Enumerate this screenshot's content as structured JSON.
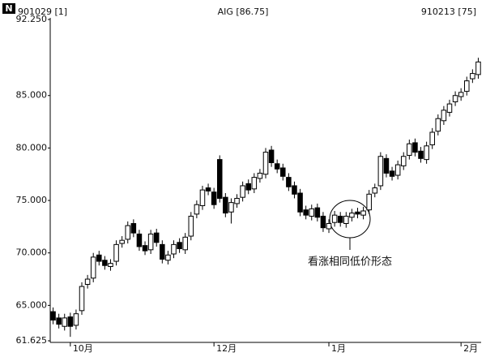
{
  "chart_data": {
    "type": "candlestick",
    "logo": "N",
    "start_label": "901029 [1]",
    "title": "AIG [86.75]",
    "end_label": "910213 [75]",
    "annotation": "看涨相同低价形态",
    "categories": [
      null,
      null,
      null,
      "10月",
      null,
      null,
      null,
      null,
      null,
      null,
      null,
      null,
      null,
      null,
      null,
      null,
      null,
      null,
      null,
      null,
      null,
      null,
      null,
      null,
      null,
      null,
      null,
      null,
      "12月",
      null,
      null,
      null,
      null,
      null,
      null,
      null,
      null,
      null,
      null,
      null,
      null,
      null,
      null,
      null,
      null,
      null,
      null,
      null,
      "1月",
      null,
      null,
      null,
      null,
      null,
      null,
      null,
      null,
      null,
      null,
      null,
      null,
      null,
      null,
      null,
      null,
      null,
      null,
      null,
      null,
      null,
      null,
      "2月",
      null,
      null,
      null
    ],
    "open": [
      64.4,
      63.8,
      63.0,
      63.9,
      63.1,
      64.5,
      67.0,
      67.6,
      69.8,
      69.3,
      68.7,
      69.2,
      70.9,
      71.3,
      72.8,
      71.8,
      70.7,
      70.3,
      71.9,
      70.8,
      69.3,
      69.9,
      71.0,
      70.3,
      71.6,
      73.7,
      74.5,
      76.2,
      75.8,
      78.9,
      75.3,
      73.9,
      74.7,
      75.3,
      76.6,
      76.1,
      77.1,
      77.5,
      79.8,
      78.5,
      78.1,
      77.2,
      76.4,
      75.7,
      74.1,
      73.5,
      74.3,
      73.5,
      72.3,
      72.9,
      73.5,
      72.8,
      73.4,
      73.9,
      73.6,
      74.1,
      75.7,
      76.4,
      79.0,
      77.8,
      77.4,
      78.3,
      79.3,
      80.5,
      79.7,
      78.9,
      80.3,
      81.6,
      82.6,
      83.4,
      84.4,
      84.9,
      85.4,
      86.6,
      87.0
    ],
    "high": [
      64.8,
      64.2,
      64.2,
      64.3,
      64.6,
      67.2,
      67.9,
      70.0,
      70.2,
      69.7,
      69.4,
      71.2,
      71.6,
      73.0,
      73.2,
      72.2,
      71.1,
      72.2,
      72.3,
      71.2,
      70.2,
      71.2,
      71.4,
      71.9,
      73.9,
      75.0,
      76.4,
      76.6,
      76.2,
      79.3,
      75.7,
      75.2,
      75.6,
      76.8,
      77.0,
      77.6,
      78.0,
      80.0,
      80.2,
      78.9,
      78.5,
      77.6,
      76.8,
      76.1,
      74.5,
      74.6,
      74.7,
      73.9,
      73.2,
      74.0,
      73.9,
      73.9,
      74.2,
      74.3,
      74.4,
      76.0,
      76.6,
      79.6,
      79.4,
      78.2,
      78.8,
      79.6,
      80.8,
      80.9,
      80.1,
      80.6,
      81.9,
      83.2,
      84.0,
      84.6,
      85.4,
      85.7,
      86.8,
      87.5,
      88.6
    ],
    "low": [
      63.2,
      62.8,
      62.6,
      62.0,
      62.7,
      64.1,
      66.6,
      67.2,
      68.8,
      68.4,
      68.3,
      68.8,
      70.5,
      70.9,
      71.5,
      70.2,
      69.8,
      69.9,
      70.6,
      69.0,
      68.9,
      69.5,
      70.0,
      69.9,
      71.2,
      73.3,
      74.1,
      75.5,
      74.2,
      74.8,
      73.4,
      72.8,
      74.3,
      74.9,
      75.6,
      75.7,
      76.7,
      77.1,
      78.2,
      77.6,
      76.9,
      75.9,
      75.2,
      73.5,
      73.2,
      73.1,
      73.0,
      72.0,
      71.9,
      72.5,
      72.5,
      72.4,
      73.0,
      73.3,
      73.2,
      73.7,
      75.3,
      76.0,
      77.2,
      76.9,
      77.0,
      77.9,
      78.9,
      79.2,
      78.6,
      78.5,
      79.9,
      81.2,
      82.2,
      83.0,
      84.0,
      84.5,
      85.0,
      86.2,
      86.6
    ],
    "close": [
      63.6,
      63.2,
      63.8,
      63.0,
      64.2,
      66.8,
      67.5,
      69.6,
      69.2,
      68.8,
      69.0,
      70.8,
      71.2,
      72.6,
      71.9,
      70.6,
      70.2,
      71.8,
      71.0,
      69.4,
      69.8,
      70.8,
      70.4,
      71.5,
      73.5,
      74.6,
      76.0,
      75.9,
      74.6,
      75.2,
      73.8,
      74.8,
      75.2,
      76.4,
      76.0,
      77.2,
      77.6,
      79.6,
      78.6,
      78.0,
      77.3,
      76.3,
      75.6,
      73.9,
      73.6,
      74.2,
      73.4,
      72.4,
      72.8,
      73.6,
      72.9,
      73.5,
      73.8,
      73.7,
      74.0,
      75.6,
      76.2,
      79.2,
      77.6,
      77.3,
      78.4,
      79.2,
      80.4,
      79.6,
      79.0,
      80.2,
      81.5,
      82.8,
      83.6,
      84.2,
      85.0,
      85.3,
      86.4,
      87.1,
      88.2
    ],
    "up_color": "#ffffff",
    "down_color": "#000000",
    "ylim": [
      61.625,
      92.25
    ],
    "yticks": [
      {
        "value": 61.625,
        "label": "61.625"
      },
      {
        "value": 65,
        "label": "65.000"
      },
      {
        "value": 70,
        "label": "70.000"
      },
      {
        "value": 75,
        "label": "75.000"
      },
      {
        "value": 80,
        "label": "80.000"
      },
      {
        "value": 85,
        "label": "85.000"
      },
      {
        "value": 92.25,
        "label": "92.250"
      }
    ],
    "grid": false
  }
}
